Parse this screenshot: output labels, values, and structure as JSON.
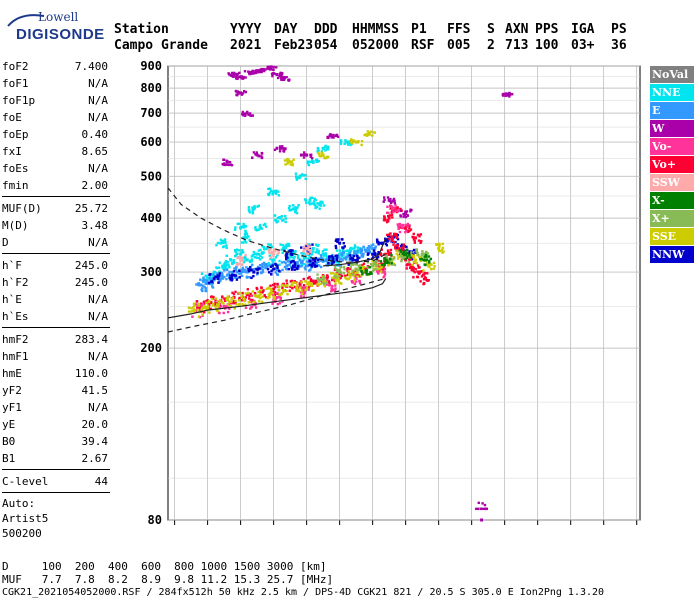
{
  "logo": {
    "line1": "Lowell",
    "line2": "DIGISONDE"
  },
  "header": {
    "labels": [
      "Station",
      "YYYY",
      "DAY",
      "DDD",
      "HHMMSS",
      "P1",
      "FFS",
      "S",
      "AXN",
      "PPS",
      "IGA",
      "PS"
    ],
    "values": [
      "Campo Grande",
      "2021",
      "Feb23",
      "054",
      "052000",
      "RSF",
      "005",
      "2",
      "713",
      "100",
      "03+",
      "36"
    ]
  },
  "params": {
    "group1": [
      {
        "key": "foF2",
        "value": "7.400"
      },
      {
        "key": "foF1",
        "value": "N/A"
      },
      {
        "key": "foF1p",
        "value": "N/A"
      },
      {
        "key": "foE",
        "value": "N/A"
      },
      {
        "key": "foEp",
        "value": "0.40"
      },
      {
        "key": "fxI",
        "value": "8.65"
      },
      {
        "key": "foEs",
        "value": "N/A"
      },
      {
        "key": "fmin",
        "value": "2.00"
      }
    ],
    "group2": [
      {
        "key": "MUF(D)",
        "value": "25.72"
      },
      {
        "key": "M(D)",
        "value": "3.48"
      },
      {
        "key": "D",
        "value": "N/A"
      }
    ],
    "group3": [
      {
        "key": "h`F",
        "value": "245.0"
      },
      {
        "key": "h`F2",
        "value": "245.0"
      },
      {
        "key": "h`E",
        "value": "N/A"
      },
      {
        "key": "h`Es",
        "value": "N/A"
      }
    ],
    "group4": [
      {
        "key": "hmF2",
        "value": "283.4"
      },
      {
        "key": "hmF1",
        "value": "N/A"
      },
      {
        "key": "hmE",
        "value": "110.0"
      },
      {
        "key": "yF2",
        "value": "41.5"
      },
      {
        "key": "yF1",
        "value": "N/A"
      },
      {
        "key": "yE",
        "value": "20.0"
      },
      {
        "key": "B0",
        "value": "39.4"
      },
      {
        "key": "B1",
        "value": "2.67"
      }
    ],
    "clevel": {
      "key": "C-level",
      "value": "44"
    },
    "auto": [
      "Auto:",
      "Artist5",
      "500200"
    ]
  },
  "legend": [
    {
      "label": "NoVal",
      "color": "#808080"
    },
    {
      "label": "NNE",
      "color": "#00e5ee"
    },
    {
      "label": "E",
      "color": "#3399ff"
    },
    {
      "label": "W",
      "color": "#aa00aa"
    },
    {
      "label": "Vo-",
      "color": "#ff3399"
    },
    {
      "label": "Vo+",
      "color": "#ff0033"
    },
    {
      "label": "SSW",
      "color": "#ffaaaa"
    },
    {
      "label": "X-",
      "color": "#008000"
    },
    {
      "label": "X+",
      "color": "#88bb55"
    },
    {
      "label": "SSE",
      "color": "#cccc00"
    },
    {
      "label": "NNW",
      "color": "#0000cc"
    }
  ],
  "footer": {
    "line1": "D     100  200  400  600  800 1000 1500 3000 [km]",
    "line2": "MUF   7.7  7.8  8.2  8.9  9.8 11.2 15.3 25.7 [MHz]",
    "line3": "CGK21_2021054052000.RSF / 284fx512h 50 kHz 2.5 km / DPS-4D CGK21 821 / 20.5 S 305.0 E Ion2Png 1.3.20"
  },
  "chart_data": {
    "type": "scatter",
    "title": "",
    "xlabel": "",
    "ylabel": "",
    "xlim": [
      0.8,
      15.1
    ],
    "ylim": [
      80,
      900
    ],
    "y_scale": "log",
    "xticks": [
      1,
      2,
      3,
      4,
      5,
      6,
      7,
      8,
      9,
      10,
      11,
      12,
      13,
      14,
      15
    ],
    "yticks": [
      80,
      200,
      300,
      400,
      500,
      600,
      700,
      800,
      900
    ],
    "grid": true,
    "legend_position": "right",
    "series": [
      {
        "name": "NNE",
        "color": "#00e5ee",
        "x": [
          2.0,
          2.2,
          2.5,
          2.7,
          3.0,
          3.2,
          3.5,
          3.8,
          4.0,
          4.3,
          4.5,
          4.8,
          5.0,
          5.2,
          5.5,
          5.8,
          6.0,
          6.3,
          6.6,
          2.4,
          3.1,
          3.6,
          4.2,
          4.6,
          5.1,
          5.4,
          3.0,
          3.4,
          4.0,
          4.8,
          5.2,
          5.5,
          6.2
        ],
        "y": [
          290,
          300,
          310,
          320,
          330,
          320,
          330,
          340,
          320,
          340,
          330,
          320,
          330,
          340,
          330,
          320,
          330,
          335,
          340,
          350,
          360,
          380,
          400,
          420,
          440,
          430,
          380,
          420,
          460,
          500,
          540,
          580,
          600
        ]
      },
      {
        "name": "E",
        "color": "#3399ff",
        "x": [
          1.8,
          2.0,
          2.3,
          2.6,
          2.9,
          3.2,
          3.5,
          3.8,
          4.1,
          4.4,
          4.7,
          5.0,
          5.3,
          5.6,
          5.9,
          6.2,
          6.5,
          6.8,
          7.0
        ],
        "y": [
          280,
          285,
          290,
          295,
          300,
          300,
          305,
          310,
          305,
          310,
          315,
          310,
          315,
          320,
          320,
          325,
          330,
          335,
          340
        ]
      },
      {
        "name": "NNW",
        "color": "#0000cc",
        "x": [
          2.2,
          2.8,
          3.4,
          4.0,
          4.6,
          5.2,
          5.8,
          6.4,
          7.0,
          7.3,
          7.6,
          7.9,
          8.2,
          4.4,
          5.0,
          6.0
        ],
        "y": [
          290,
          295,
          300,
          305,
          310,
          315,
          320,
          320,
          330,
          350,
          360,
          340,
          330,
          330,
          340,
          350
        ]
      },
      {
        "name": "Vo+",
        "color": "#ff0033",
        "x": [
          1.8,
          2.1,
          2.4,
          2.8,
          3.2,
          3.6,
          4.0,
          4.4,
          4.8,
          5.2,
          5.6,
          6.0,
          6.4,
          6.8,
          7.2,
          7.4,
          7.6,
          7.8,
          8.0,
          8.2,
          8.4,
          8.6,
          7.5,
          7.7,
          8.0,
          8.3
        ],
        "y": [
          250,
          255,
          258,
          262,
          266,
          270,
          274,
          278,
          282,
          286,
          290,
          295,
          300,
          305,
          310,
          330,
          360,
          340,
          320,
          310,
          300,
          290,
          400,
          420,
          380,
          360
        ]
      },
      {
        "name": "Vo-",
        "color": "#ff3399",
        "x": [
          1.7,
          2.5,
          3.3,
          4.1,
          4.9,
          5.7,
          6.5,
          7.3,
          7.6,
          7.9
        ],
        "y": [
          245,
          250,
          256,
          262,
          270,
          280,
          290,
          300,
          420,
          380
        ]
      },
      {
        "name": "W",
        "color": "#aa00aa",
        "x": [
          2.8,
          3.0,
          3.3,
          3.6,
          3.9,
          2.6,
          3.5,
          4.2,
          5.0,
          5.8,
          3.0,
          3.2,
          4.1,
          4.3,
          11.1,
          10.3,
          7.5,
          8.0
        ],
        "y": [
          860,
          850,
          870,
          880,
          890,
          540,
          560,
          580,
          560,
          620,
          780,
          700,
          860,
          840,
          775,
          80,
          440,
          410
        ]
      },
      {
        "name": "SSE",
        "color": "#cccc00",
        "x": [
          1.6,
          1.9,
          2.3,
          2.7,
          3.1,
          3.5,
          3.9,
          4.3,
          4.7,
          5.1,
          5.5,
          5.9,
          6.3,
          6.7,
          7.1,
          7.5,
          7.9,
          8.3,
          8.7,
          9.0,
          4.5,
          5.5,
          6.5,
          6.9
        ],
        "y": [
          245,
          248,
          252,
          256,
          260,
          264,
          268,
          272,
          276,
          280,
          285,
          290,
          296,
          302,
          310,
          320,
          330,
          320,
          310,
          340,
          540,
          560,
          600,
          630
        ]
      },
      {
        "name": "X+",
        "color": "#88bb55",
        "x": [
          5.5,
          6.0,
          6.5,
          7.0,
          7.5,
          8.0,
          8.5
        ],
        "y": [
          290,
          300,
          305,
          310,
          320,
          325,
          330
        ]
      },
      {
        "name": "X-",
        "color": "#008000",
        "x": [
          6.8,
          7.4,
          8.0,
          8.6
        ],
        "y": [
          300,
          320,
          330,
          320
        ]
      },
      {
        "name": "SSW",
        "color": "#ffaaaa",
        "x": [
          3.0,
          4.0,
          5.0
        ],
        "y": [
          320,
          330,
          340
        ]
      }
    ],
    "profile_solid": {
      "x": [
        0.8,
        1.5,
        2.0,
        3.0,
        4.0,
        5.0,
        6.0,
        6.6,
        7.0,
        7.3,
        7.4
      ],
      "y": [
        235,
        240,
        245,
        250,
        256,
        262,
        268,
        272,
        276,
        282,
        290
      ]
    },
    "profile_solid_upper": {
      "x": [
        5.5,
        6.0,
        6.5,
        7.0,
        7.2,
        7.3,
        7.4
      ],
      "y": [
        310,
        312,
        316,
        322,
        330,
        345,
        360
      ]
    },
    "profile_dashed_lower": {
      "x": [
        0.8,
        1.5,
        2.5,
        3.5,
        4.5,
        5.5,
        6.5,
        7.4
      ],
      "y": [
        218,
        224,
        232,
        242,
        252,
        265,
        278,
        290
      ]
    },
    "profile_dashed_upper": {
      "x": [
        0.8,
        1.2,
        1.8,
        2.5,
        3.2,
        4.0,
        4.8,
        5.5,
        6.2,
        7.0,
        7.4
      ],
      "y": [
        470,
        430,
        400,
        375,
        355,
        340,
        328,
        320,
        316,
        318,
        330
      ]
    }
  }
}
